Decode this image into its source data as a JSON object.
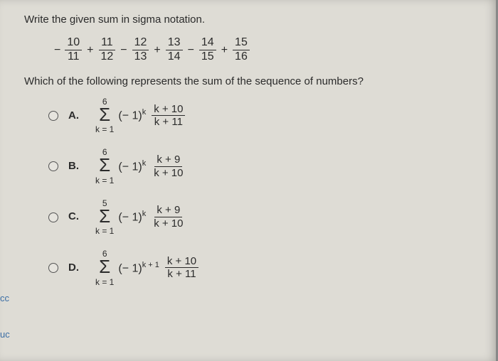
{
  "prompt": "Write the given sum in sigma notation.",
  "series": {
    "leading_sign": "−",
    "terms": [
      {
        "num": "10",
        "den": "11",
        "op_after": "+"
      },
      {
        "num": "11",
        "den": "12",
        "op_after": "−"
      },
      {
        "num": "12",
        "den": "13",
        "op_after": "+"
      },
      {
        "num": "13",
        "den": "14",
        "op_after": "−"
      },
      {
        "num": "14",
        "den": "15",
        "op_after": "+"
      },
      {
        "num": "15",
        "den": "16",
        "op_after": ""
      }
    ]
  },
  "question2": "Which of the following represents the sum of the sequence of numbers?",
  "options": {
    "A": {
      "label": "A.",
      "upper": "6",
      "lower": "k = 1",
      "base": "(− 1)",
      "exp": "k",
      "frac_num": "k + 10",
      "frac_den": "k + 11"
    },
    "B": {
      "label": "B.",
      "upper": "6",
      "lower": "k = 1",
      "base": "(− 1)",
      "exp": "k",
      "frac_num": "k + 9",
      "frac_den": "k + 10"
    },
    "C": {
      "label": "C.",
      "upper": "5",
      "lower": "k = 1",
      "base": "(− 1)",
      "exp": "k",
      "frac_num": "k + 9",
      "frac_den": "k + 10"
    },
    "D": {
      "label": "D.",
      "upper": "6",
      "lower": "k = 1",
      "base": "(− 1)",
      "exp": "k + 1",
      "frac_num": "k + 10",
      "frac_den": "k + 11"
    }
  },
  "sigma_glyph": "Σ",
  "sidebar": {
    "frag1": "cc",
    "frag2": "uc"
  },
  "colors": {
    "page_bg": "#dedcd5",
    "text": "#2b2b2b",
    "link": "#3b6ea5"
  }
}
